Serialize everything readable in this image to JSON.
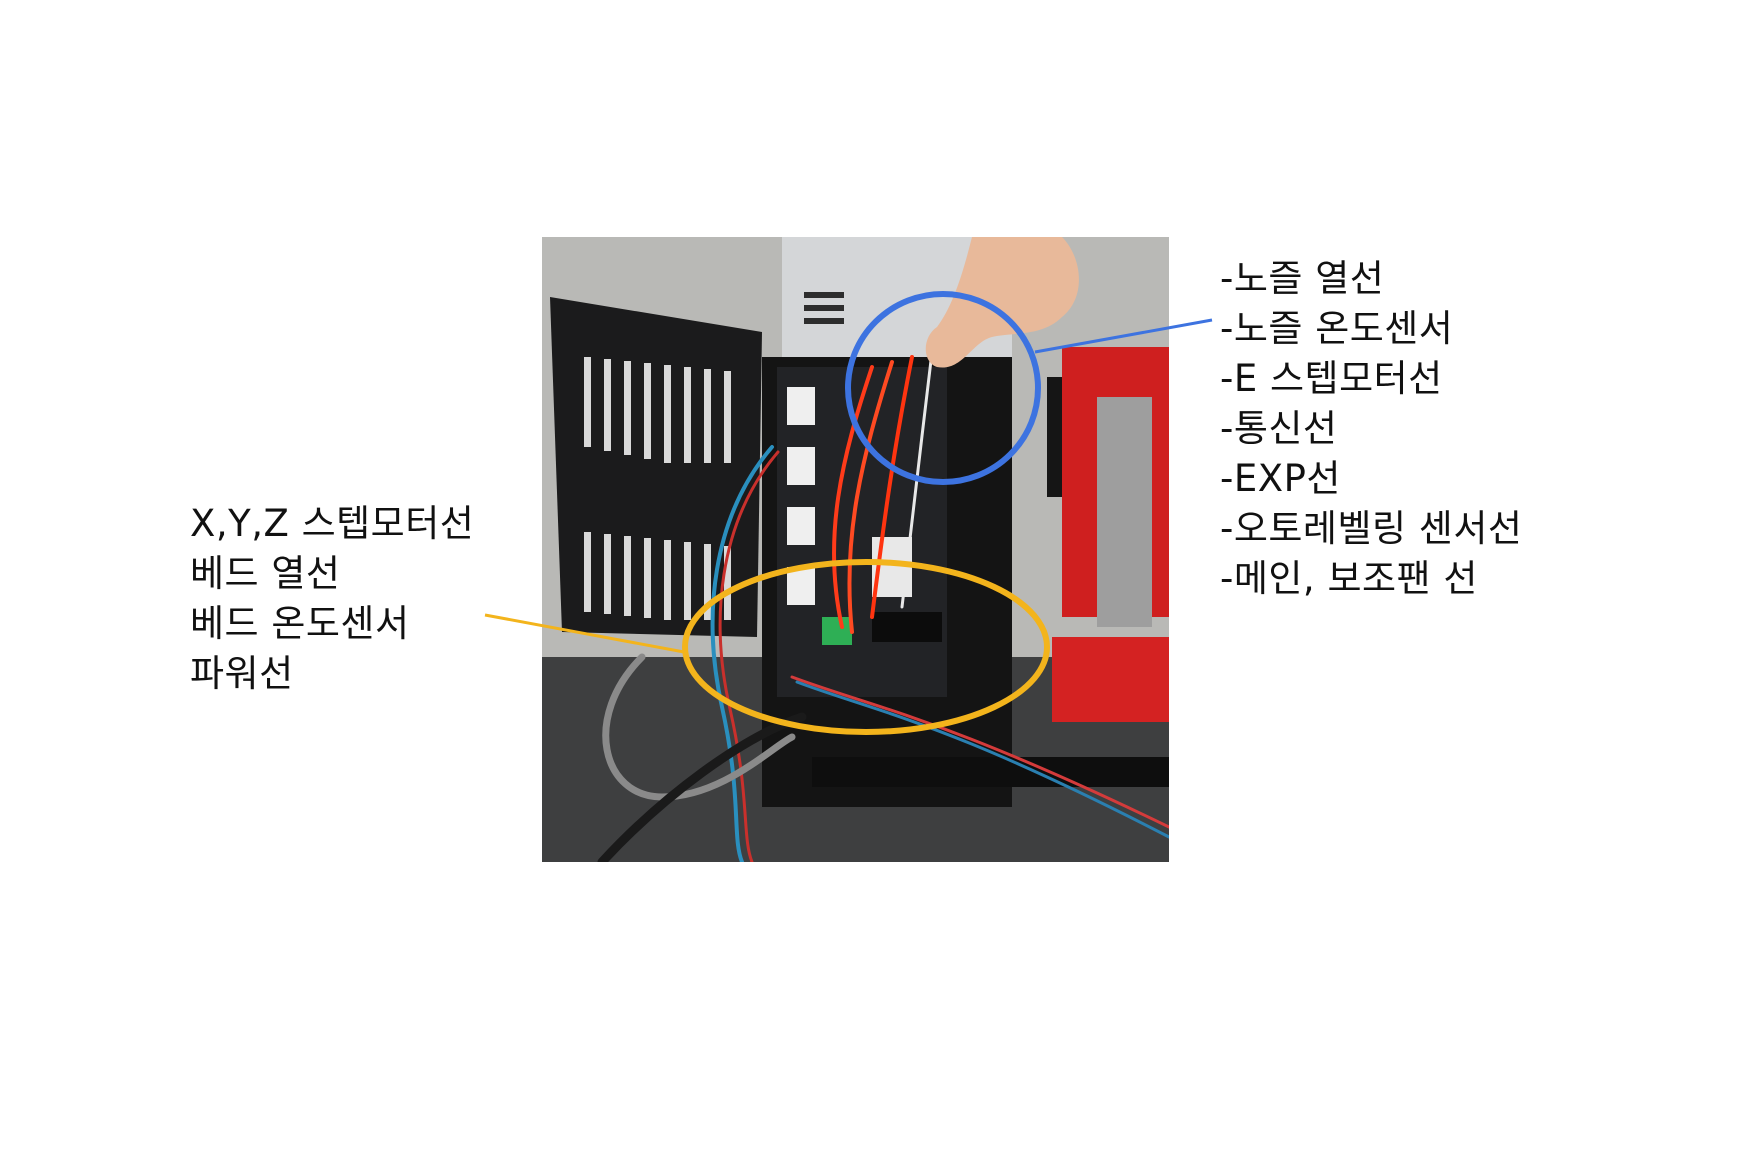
{
  "colors": {
    "blue_circle": "#3d73e0",
    "orange_circle": "#f3b41c"
  },
  "photo": {
    "subject": "3D printer control board with wiring",
    "icon": "photo-icon"
  },
  "left_labels": [
    "X,Y,Z 스텝모터선",
    "베드 열선",
    "베드 온도센서",
    "파워선"
  ],
  "right_labels": [
    "-노즐 열선",
    "-노즐 온도센서",
    "-E 스텝모터선",
    "-통신선",
    "-EXP선",
    "-오토레벨링 센서선",
    "-메인, 보조팬 선"
  ]
}
